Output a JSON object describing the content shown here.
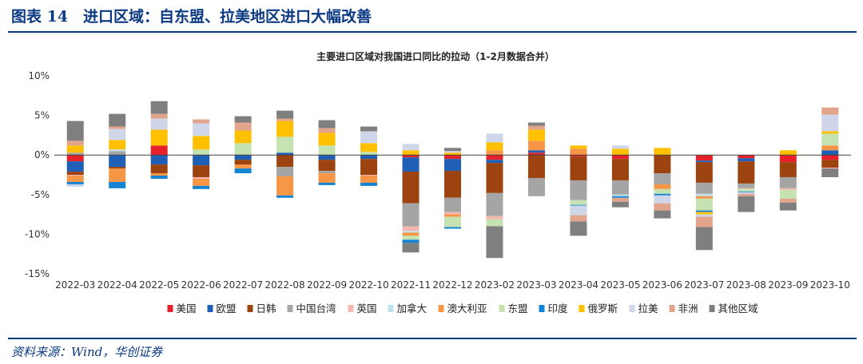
{
  "figure": {
    "title": "图表 14　进口区域：自东盟、拉美地区进口大幅改善",
    "source": "资料来源：Wind，华创证券"
  },
  "colors": {
    "frame": "#0b3a82",
    "series": [
      "#e8202a",
      "#1f5fb5",
      "#9c4310",
      "#a5a5a5",
      "#f4b7b0",
      "#bfe2ef",
      "#f79646",
      "#c4e3b0",
      "#1384d3",
      "#ffc000",
      "#cfd6ea",
      "#e2a58c",
      "#7f7f7f"
    ]
  },
  "chart_data": {
    "type": "bar",
    "stacked": true,
    "title": "主要进口区域对我国进口同比的拉动（1-2月数据合并）",
    "xlabel": "",
    "ylabel": "",
    "ylim": [
      -15,
      10
    ],
    "yticks": [
      10,
      5,
      0,
      -5,
      -10,
      -15
    ],
    "ytick_labels": [
      "10%",
      "5%",
      "0%",
      "-5%",
      "-10%",
      "-15%"
    ],
    "legend_position": "bottom",
    "categories": [
      "2022-03",
      "2022-04",
      "2022-05",
      "2022-06",
      "2022-07",
      "2022-08",
      "2022-09",
      "2022-10",
      "2022-11",
      "2022-12",
      "2023-02",
      "2023-03",
      "2023-04",
      "2023-05",
      "2023-06",
      "2023-07",
      "2023-08",
      "2023-09",
      "2023-10"
    ],
    "series": [
      {
        "name": "美国",
        "values": [
          -0.8,
          0.0,
          1.2,
          0.0,
          0.0,
          0.0,
          0.0,
          0.0,
          -0.3,
          -0.5,
          -0.6,
          0.3,
          -0.2,
          -0.5,
          0.0,
          -0.7,
          -0.4,
          -0.9,
          -0.6
        ]
      },
      {
        "name": "欧盟",
        "values": [
          -1.3,
          -1.5,
          -1.2,
          -1.3,
          -0.6,
          0.3,
          -0.6,
          -0.5,
          -1.8,
          -1.5,
          -0.4,
          0.3,
          0.0,
          0.0,
          0.0,
          -0.2,
          -0.4,
          0.0,
          0.6
        ]
      },
      {
        "name": "日韩",
        "values": [
          -0.4,
          -0.2,
          -1.1,
          -1.5,
          -0.6,
          -1.5,
          -1.4,
          -2.0,
          -4.0,
          -3.4,
          -3.8,
          -2.9,
          -3.0,
          -2.7,
          -2.3,
          -2.6,
          -2.8,
          -1.9,
          -1.0
        ]
      },
      {
        "name": "中国台湾",
        "values": [
          0.3,
          0.5,
          0.0,
          0.0,
          0.0,
          -1.2,
          -0.3,
          0.0,
          -2.9,
          -1.8,
          -2.9,
          -2.3,
          -2.5,
          -1.8,
          -1.4,
          -1.4,
          -0.6,
          -1.4,
          0.0
        ]
      },
      {
        "name": "英国",
        "values": [
          -0.1,
          0.0,
          0.0,
          -0.2,
          0.0,
          0.0,
          0.0,
          -0.1,
          -0.6,
          -0.3,
          -0.4,
          0.0,
          0.0,
          0.0,
          0.0,
          0.0,
          -0.1,
          -0.2,
          -0.1
        ]
      },
      {
        "name": "加拿大",
        "values": [
          0.0,
          0.2,
          0.0,
          0.0,
          0.0,
          0.0,
          0.0,
          0.0,
          -0.2,
          0.0,
          0.0,
          0.0,
          0.0,
          -0.2,
          0.0,
          -0.3,
          0.0,
          0.0,
          0.0
        ]
      },
      {
        "name": "澳大利亚",
        "values": [
          -0.8,
          -1.7,
          -0.3,
          -0.9,
          -0.5,
          -2.4,
          -1.2,
          -0.9,
          -0.4,
          -0.3,
          0.6,
          1.2,
          0.8,
          0.0,
          -0.6,
          -0.3,
          0.0,
          0.0,
          0.6
        ]
      },
      {
        "name": "东盟",
        "values": [
          0.0,
          0.0,
          0.0,
          0.7,
          1.5,
          2.0,
          1.2,
          0.4,
          -0.5,
          -1.3,
          -0.9,
          0.0,
          -0.6,
          0.0,
          -0.6,
          -1.5,
          -0.3,
          -1.1,
          1.5
        ]
      },
      {
        "name": "印度",
        "values": [
          -0.3,
          -0.8,
          -0.4,
          -0.4,
          -0.6,
          -0.3,
          -0.3,
          -0.4,
          -0.4,
          -0.2,
          0.0,
          0.0,
          -0.1,
          -0.2,
          -0.2,
          -0.2,
          -0.1,
          0.0,
          0.0
        ]
      },
      {
        "name": "俄罗斯",
        "values": [
          0.9,
          1.2,
          2.0,
          1.7,
          1.6,
          2.0,
          1.6,
          1.1,
          0.6,
          0.3,
          1.0,
          1.4,
          0.4,
          0.8,
          0.9,
          -0.3,
          0.0,
          0.6,
          0.3
        ]
      },
      {
        "name": "拉美",
        "values": [
          -0.3,
          1.4,
          1.4,
          1.6,
          0.0,
          0.0,
          0.0,
          1.5,
          0.8,
          0.2,
          1.1,
          0.0,
          -1.2,
          0.4,
          -1.0,
          -0.3,
          -0.2,
          0.0,
          2.1
        ]
      },
      {
        "name": "非洲",
        "values": [
          0.6,
          0.3,
          0.6,
          0.5,
          1.0,
          0.3,
          0.6,
          0.0,
          0.0,
          0.0,
          0.0,
          0.5,
          -0.8,
          -0.5,
          -0.9,
          -1.3,
          -0.3,
          -0.5,
          0.9
        ]
      },
      {
        "name": "其他区域",
        "values": [
          2.5,
          1.6,
          1.6,
          0.0,
          0.8,
          1.0,
          1.0,
          0.6,
          -1.2,
          0.4,
          -4.0,
          0.4,
          -1.8,
          -0.7,
          -1.0,
          -2.9,
          -2.0,
          -1.0,
          -1.1
        ]
      }
    ]
  }
}
